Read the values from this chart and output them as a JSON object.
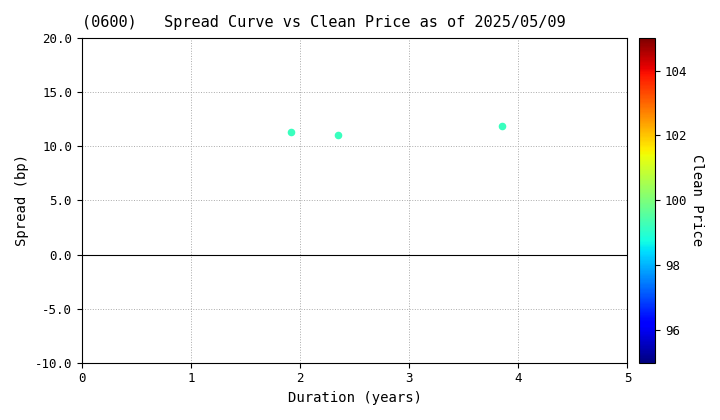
{
  "title": "(0600)   Spread Curve vs Clean Price as of 2025/05/09",
  "xlabel": "Duration (years)",
  "ylabel": "Spread (bp)",
  "colorbar_label": "Clean Price",
  "xlim": [
    0,
    5
  ],
  "ylim": [
    -10,
    20
  ],
  "xticks": [
    0,
    1,
    2,
    3,
    4,
    5
  ],
  "yticks": [
    -10.0,
    -5.0,
    0.0,
    5.0,
    10.0,
    15.0,
    20.0
  ],
  "colorbar_ticks": [
    96,
    98,
    100,
    102,
    104
  ],
  "colorbar_vmin": 95,
  "colorbar_vmax": 105,
  "points": [
    {
      "duration": 1.92,
      "spread": 11.3,
      "clean_price": 99.2
    },
    {
      "duration": 2.35,
      "spread": 11.0,
      "clean_price": 99.2
    },
    {
      "duration": 3.85,
      "spread": 11.9,
      "clean_price": 99.2
    }
  ],
  "marker_size": 20,
  "background_color": "#ffffff",
  "grid_color": "#aaaaaa",
  "title_fontsize": 11,
  "label_fontsize": 10,
  "tick_fontsize": 9,
  "colorbar_labelpad": 12
}
